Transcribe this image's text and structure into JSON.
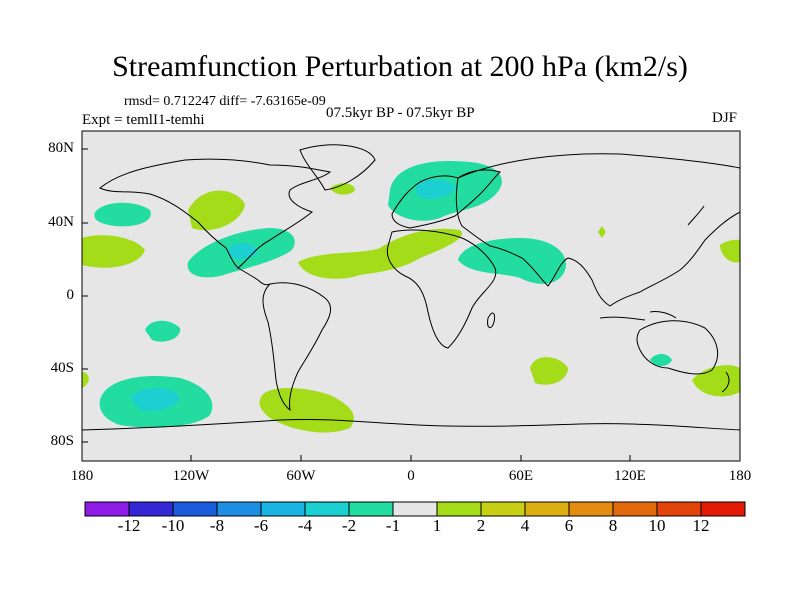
{
  "title": "Streamfunction Perturbation at 200 hPa (km2/s)",
  "stats": "rmsd= 0.712247 diff= -7.63165e-09",
  "experiment": "Expt = temlI1-temhi",
  "center_label": "07.5kyr BP - 07.5kyr BP",
  "season": "DJF",
  "lat_labels": [
    "80N",
    "40N",
    "0",
    "40S",
    "80S"
  ],
  "lon_labels": [
    "180",
    "120W",
    "60W",
    "0",
    "60E",
    "120E",
    "180"
  ],
  "colorbar": {
    "colors": [
      "#8c1ce6",
      "#3428d6",
      "#1a5cdc",
      "#1e8fe3",
      "#19b4e1",
      "#1ccfd0",
      "#22dca0",
      "#e6e6e6",
      "#a4dc1a",
      "#c8d016",
      "#dcb012",
      "#e38c10",
      "#e26a0c",
      "#e2440a",
      "#e21a06"
    ],
    "labels": [
      "-12",
      "-10",
      "-8",
      "-6",
      "-4",
      "-2",
      "-1",
      "1",
      "2",
      "4",
      "6",
      "8",
      "10",
      "12"
    ]
  },
  "colors": {
    "negative_small": "#22dca0",
    "negative_mid": "#1ccfd0",
    "positive_small": "#a4dc1a",
    "neutral": "#e6e6e6"
  }
}
